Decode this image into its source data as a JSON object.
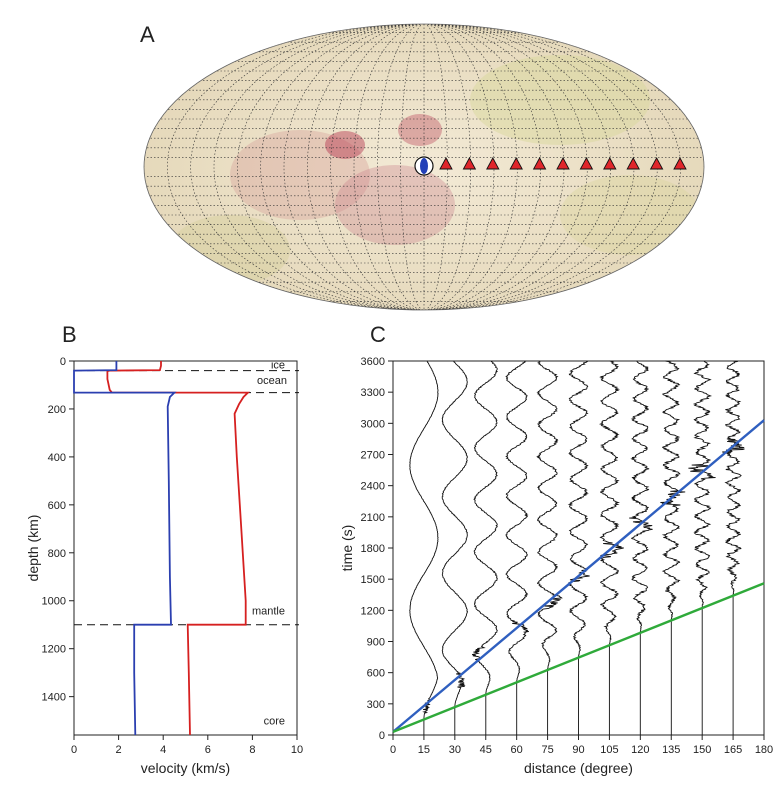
{
  "panels": {
    "A": "A",
    "B": "B",
    "C": "C"
  },
  "colors": {
    "vp": "#d62020",
    "vs": "#2b3fb0",
    "line_fast": "#2f5fbf",
    "line_slow": "#2faa3a",
    "station": "#e0262b",
    "map_base": "#efe6cf"
  },
  "chart_data": [
    {
      "type": "map",
      "panel": "A",
      "projection": "Robinson-like (global)",
      "source_marker": "focal-mechanism beachball",
      "station_count": 11,
      "station_distances_deg": [
        15,
        30,
        45,
        60,
        75,
        90,
        105,
        120,
        135,
        150,
        165
      ]
    },
    {
      "type": "line",
      "panel": "B",
      "xlabel": "velocity (km/s)",
      "ylabel": "depth (km)",
      "xlim": [
        0,
        10
      ],
      "ylim": [
        1560,
        0
      ],
      "xticks": [
        0,
        2,
        4,
        6,
        8,
        10
      ],
      "yticks": [
        0,
        200,
        400,
        600,
        800,
        1000,
        1200,
        1400
      ],
      "layer_labels": [
        "ice",
        "ocean",
        "mantle",
        "core"
      ],
      "boundaries_km": [
        40,
        132,
        1100
      ],
      "series": [
        {
          "color": "#d62020",
          "points": [
            [
              3.9,
              0
            ],
            [
              3.9,
              20
            ],
            [
              3.85,
              38
            ],
            [
              1.6,
              40
            ],
            [
              1.5,
              42
            ],
            [
              1.5,
              75
            ],
            [
              1.6,
              120
            ],
            [
              1.7,
              132
            ],
            [
              7.8,
              132
            ],
            [
              7.6,
              150
            ],
            [
              7.4,
              180
            ],
            [
              7.2,
              220
            ],
            [
              7.3,
              400
            ],
            [
              7.5,
              700
            ],
            [
              7.7,
              1000
            ],
            [
              7.7,
              1100
            ],
            [
              5.1,
              1100
            ],
            [
              5.15,
              1300
            ],
            [
              5.2,
              1560
            ]
          ]
        },
        {
          "color": "#2b3fb0",
          "points": [
            [
              1.9,
              0
            ],
            [
              1.9,
              38
            ],
            [
              0,
              40
            ],
            [
              0,
              132
            ],
            [
              4.5,
              132
            ],
            [
              4.3,
              150
            ],
            [
              4.2,
              190
            ],
            [
              4.25,
              500
            ],
            [
              4.3,
              900
            ],
            [
              4.35,
              1100
            ],
            [
              2.7,
              1100
            ],
            [
              2.7,
              1300
            ],
            [
              2.75,
              1560
            ]
          ]
        }
      ]
    },
    {
      "type": "seismogram-section",
      "panel": "C",
      "xlabel": "distance (degree)",
      "ylabel": "time (s)",
      "xlim": [
        0,
        180
      ],
      "ylim": [
        0,
        3600
      ],
      "xticks": [
        0,
        15,
        30,
        45,
        60,
        75,
        90,
        105,
        120,
        135,
        150,
        165,
        180
      ],
      "yticks": [
        0,
        300,
        600,
        900,
        1200,
        1500,
        1800,
        2100,
        2400,
        2700,
        3000,
        3300,
        3600
      ],
      "traces_at_deg": [
        15,
        30,
        45,
        60,
        75,
        90,
        105,
        120,
        135,
        150,
        165
      ],
      "reference_lines": [
        {
          "color": "#2f5fbf",
          "x": [
            0,
            180
          ],
          "y": [
            30,
            3030
          ]
        },
        {
          "color": "#2faa3a",
          "x": [
            0,
            180
          ],
          "y": [
            30,
            1460
          ]
        }
      ]
    }
  ]
}
